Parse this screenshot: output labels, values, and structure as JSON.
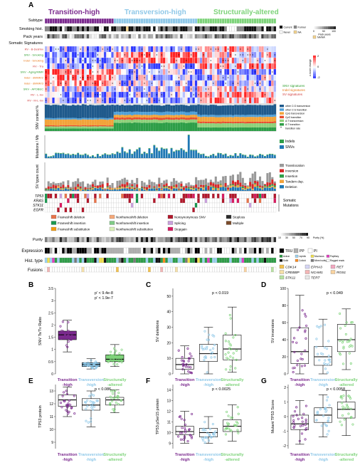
{
  "panel_letters": {
    "a": "A",
    "b": "B",
    "c": "C",
    "d": "D",
    "e": "E",
    "f": "F",
    "g": "G"
  },
  "subtypes": [
    {
      "name": "Transition-high",
      "color": "#7B2A8E",
      "count": 28
    },
    {
      "name": "Transversion-high",
      "color": "#8FC8E8",
      "count": 34
    },
    {
      "name": "Structurally-altered",
      "color": "#7ED37A",
      "count": 32
    }
  ],
  "rows": {
    "subtype": "Subtype",
    "smoking": "Smoking hist.",
    "packyears": "Pack years",
    "somatic": "Somatic Signatures",
    "snv_context": "SNV context %",
    "mutations": "Mutations / Mb",
    "svtypes": "SV types count",
    "purity": "Purity",
    "expression": "Expression",
    "histtype": "Hist. type",
    "fusions": "Fusions"
  },
  "smoking_legend": [
    "Current",
    "Former",
    "Never",
    "NA"
  ],
  "packyears_scale": {
    "min": "0",
    "mid": "50",
    "max": "100",
    "label": "Pack years",
    "na": "NA/NA"
  },
  "signature_rows": [
    {
      "label": "RV - B-Dell/Inv",
      "color": "#D13B3B"
    },
    {
      "label": "SNV - Smoking",
      "color": "#2E9E2E"
    },
    {
      "label": "Indel - Smoking",
      "color": "#E87A1C"
    },
    {
      "label": "RV - Tra",
      "color": "#D13B3B"
    },
    {
      "label": "SNV - Aging/MMR",
      "color": "#2E9E2E"
    },
    {
      "label": "Indel - dMMR/2",
      "color": "#E87A1C"
    },
    {
      "label": "Indel - dMMR/3",
      "color": "#E87A1C"
    },
    {
      "label": "SNV - APOBEC",
      "color": "#2E9E2E"
    },
    {
      "label": "RV - L-Inv",
      "color": "#D13B3B"
    },
    {
      "label": "RV - M-L-Inv",
      "color": "#D13B3B"
    }
  ],
  "zscore": {
    "label": "z-score change",
    "ticks": [
      "2",
      "0",
      "-2"
    ]
  },
  "signature_legend": [
    {
      "label": "SNV signatures",
      "color": "#2E9E2E"
    },
    {
      "label": "Indel signatures",
      "color": "#E87A1C"
    },
    {
      "label": "SV signatures",
      "color": "#D13B3B"
    }
  ],
  "snv_context_legend": [
    {
      "label": "other C:G transversion",
      "color": "#1F5A8C"
    },
    {
      "label": "other C:G transition",
      "color": "#4FA0D8"
    },
    {
      "label": "CpG transversion",
      "color": "#F2A33A"
    },
    {
      "label": "CpG transition",
      "color": "#E84E2E"
    },
    {
      "label": "A:T transversion",
      "color": "#8ED17A"
    },
    {
      "label": "A:T transition",
      "color": "#2E9E48"
    },
    {
      "label": "transition rate",
      "color": "#222222"
    }
  ],
  "mutation_legend": [
    {
      "label": "Indels",
      "color": "#2E9E48"
    },
    {
      "label": "SNVs",
      "color": "#1F78B4"
    }
  ],
  "sv_legend": [
    {
      "label": "Translocation",
      "color": "#999999"
    },
    {
      "label": "Inversion",
      "color": "#D62728"
    },
    {
      "label": "Insertion",
      "color": "#2E9E48"
    },
    {
      "label": "Tandem dup.",
      "color": "#F2A33A"
    },
    {
      "label": "Deletion",
      "color": "#1F78B4"
    }
  ],
  "genes": [
    "TP53",
    "KRAS",
    "STK11",
    "EGFR"
  ],
  "somatic_mutations_label": "Somatic Mutations",
  "mutation_types": [
    {
      "label": "Frameshift deletion",
      "color": "#E8734A"
    },
    {
      "label": "Nonframeshift deletion",
      "color": "#F5A97A"
    },
    {
      "label": "Nonsynonymous SNV",
      "color": "#B2182B"
    },
    {
      "label": "Stoploss",
      "color": "#2B2B2B"
    },
    {
      "label": "Frameshift insertion",
      "color": "#1A9850"
    },
    {
      "label": "Nonframeshift insertion",
      "color": "#7FCB86"
    },
    {
      "label": "Splicing",
      "color": "#C9A0DC"
    },
    {
      "label": "Multiple",
      "color": "#7A4A2A"
    },
    {
      "label": "Frameshift substitution",
      "color": "#F39C12"
    },
    {
      "label": "Nonframeshift substitution",
      "color": "#D9F0B8"
    },
    {
      "label": "Stopgain",
      "color": "#D81B60"
    }
  ],
  "purity_scale": {
    "ticks": [
      "10",
      "30",
      "50",
      "70",
      "90"
    ],
    "unit": "Purity (%)"
  },
  "expression_legend": [
    {
      "label": "TRU",
      "color": "#000000"
    },
    {
      "label": "PP",
      "color": "#B0B0B0"
    },
    {
      "label": "PI",
      "color": "#FFFFFF"
    }
  ],
  "hist_legend": [
    "Acinar",
    "Lepidic",
    "Mucinous",
    "Papillary",
    "Solid",
    "Colloid",
    "Mixed subtype",
    "Ragged reads"
  ],
  "fusion_genes": [
    {
      "label": "CDK14",
      "color": "#F2C14E"
    },
    {
      "label": "EPHA3",
      "color": "#D6D6F5"
    },
    {
      "label": "RET",
      "color": "#F2A8C0"
    },
    {
      "label": "CREBBP",
      "color": "#F5E0A8"
    },
    {
      "label": "NCAM1",
      "color": "#F4B6B6"
    },
    {
      "label": "ROS1",
      "color": "#F9D3A0"
    },
    {
      "label": "STK11",
      "color": "#B7E1A1"
    },
    {
      "label": "TERT",
      "color": "#E8E8E8"
    }
  ],
  "boxplots": [
    {
      "id": "B",
      "ylabel": "SNV Ts/Tv Ratio",
      "ylim": [
        0,
        3.5
      ],
      "ticks": [
        0,
        0.5,
        1.0,
        1.5,
        2.0,
        2.5,
        3.0,
        3.5
      ],
      "pvals": [
        "p' < 9.4e-8",
        "p' < 1.9e-7"
      ],
      "stats": [
        {
          "q1": 1.4,
          "med": 1.6,
          "q3": 1.75,
          "lo": 0.9,
          "hi": 2.2
        },
        {
          "q1": 0.3,
          "med": 0.38,
          "q3": 0.46,
          "lo": 0.2,
          "hi": 0.62
        },
        {
          "q1": 0.5,
          "med": 0.6,
          "q3": 0.78,
          "lo": 0.3,
          "hi": 1.2
        }
      ]
    },
    {
      "id": "C",
      "ylabel": "SV deletions",
      "ylim": [
        0,
        55
      ],
      "ticks": [
        0,
        10,
        20,
        30,
        40,
        50
      ],
      "pvals": [
        "p < 0.019"
      ],
      "stats": [
        {
          "q1": 3,
          "med": 6,
          "q3": 10,
          "lo": 0,
          "hi": 18
        },
        {
          "q1": 8,
          "med": 13,
          "q3": 19,
          "lo": 0,
          "hi": 30
        },
        {
          "q1": 9,
          "med": 16,
          "q3": 25,
          "lo": 1,
          "hi": 43
        }
      ]
    },
    {
      "id": "D",
      "ylabel": "SV inversions",
      "ylim": [
        0,
        100
      ],
      "ticks": [
        0,
        20,
        40,
        60,
        80,
        100
      ],
      "pvals": [
        "p < 0.049"
      ],
      "stats": [
        {
          "q1": 12,
          "med": 26,
          "q3": 54,
          "lo": 0,
          "hi": 92
        },
        {
          "q1": 10,
          "med": 20,
          "q3": 32,
          "lo": 0,
          "hi": 64
        },
        {
          "q1": 26,
          "med": 40,
          "q3": 58,
          "lo": 5,
          "hi": 76
        }
      ]
    },
    {
      "id": "E",
      "ylabel": "TP53 protein",
      "ylim": [
        8.5,
        13.5
      ],
      "ticks": [
        9,
        10,
        11,
        12,
        13
      ],
      "pvals": [
        "p < 0.086"
      ],
      "stats": [
        {
          "q1": 11.8,
          "med": 12.3,
          "q3": 12.7,
          "lo": 11.0,
          "hi": 13.3
        },
        {
          "q1": 11.5,
          "med": 11.9,
          "q3": 12.4,
          "lo": 10.2,
          "hi": 13.0
        },
        {
          "q1": 11.9,
          "med": 12.3,
          "q3": 12.5,
          "lo": 11.3,
          "hi": 13.1
        }
      ]
    },
    {
      "id": "F",
      "ylabel": "TP53 pSer15 protein",
      "ylim": [
        8.5,
        14.5
      ],
      "ticks": [
        9,
        10,
        11,
        12,
        13,
        14
      ],
      "pvals": [
        "p < 0.0025"
      ],
      "stats": [
        {
          "q1": 9.8,
          "med": 10.1,
          "q3": 10.6,
          "lo": 9.0,
          "hi": 12.0
        },
        {
          "q1": 9.6,
          "med": 10.0,
          "q3": 10.4,
          "lo": 9.0,
          "hi": 11.5
        },
        {
          "q1": 10.1,
          "med": 10.6,
          "q3": 11.2,
          "lo": 9.2,
          "hi": 12.6
        }
      ]
    },
    {
      "id": "G",
      "ylabel": "Mutant TP53 Score",
      "ylim": [
        -2.2,
        2.2
      ],
      "ticks": [
        -2,
        -1,
        0,
        1,
        2
      ],
      "pvals": [
        "p < 0.0058"
      ],
      "stats": [
        {
          "q1": -0.9,
          "med": -0.5,
          "q3": 0.1,
          "lo": -1.9,
          "hi": 1.1
        },
        {
          "q1": -0.4,
          "med": 0.1,
          "q3": 0.6,
          "lo": -1.4,
          "hi": 1.5
        },
        {
          "q1": -0.1,
          "med": 0.5,
          "q3": 1.0,
          "lo": -1.3,
          "hi": 1.8
        }
      ]
    }
  ],
  "group_labels": [
    {
      "line1": "Transition",
      "line2": "-high",
      "color": "#7B2A8E"
    },
    {
      "line1": "Transversion",
      "line2": "-high",
      "color": "#8FC8E8"
    },
    {
      "line1": "Structurally",
      "line2": "-altered",
      "color": "#7ED37A"
    }
  ],
  "chart_data": [
    {
      "type": "heatmap",
      "title": "",
      "series": [
        "Subtype",
        "Smoking hist.",
        "Pack years",
        "Somatic Signatures",
        "SNV context %",
        "Mutations / Mb",
        "SV types count",
        "Somatic Mutations",
        "Purity",
        "Expression",
        "Hist. type",
        "Fusions"
      ],
      "categories": [
        "Transition-high",
        "Transversion-high",
        "Structurally-altered"
      ]
    },
    {
      "type": "bar",
      "title": "",
      "ylabel": "SNV Ts/Tv Ratio",
      "categories": [
        "Transition-high",
        "Transversion-high",
        "Structurally-altered"
      ],
      "values": [
        1.6,
        0.38,
        0.6
      ],
      "ylim": [
        0,
        3.5
      ]
    },
    {
      "type": "bar",
      "title": "",
      "ylabel": "SV deletions",
      "categories": [
        "Transition-high",
        "Transversion-high",
        "Structurally-altered"
      ],
      "values": [
        6,
        13,
        16
      ],
      "ylim": [
        0,
        55
      ]
    },
    {
      "type": "bar",
      "title": "",
      "ylabel": "SV inversions",
      "categories": [
        "Transition-high",
        "Transversion-high",
        "Structurally-altered"
      ],
      "values": [
        26,
        20,
        40
      ],
      "ylim": [
        0,
        100
      ]
    },
    {
      "type": "bar",
      "title": "",
      "ylabel": "TP53 protein",
      "categories": [
        "Transition-high",
        "Transversion-high",
        "Structurally-altered"
      ],
      "values": [
        12.3,
        11.9,
        12.3
      ],
      "ylim": [
        8.5,
        13.5
      ]
    },
    {
      "type": "bar",
      "title": "",
      "ylabel": "TP53 pSer15 protein",
      "categories": [
        "Transition-high",
        "Transversion-high",
        "Structurally-altered"
      ],
      "values": [
        10.1,
        10.0,
        10.6
      ],
      "ylim": [
        8.5,
        14.5
      ]
    },
    {
      "type": "bar",
      "title": "",
      "ylabel": "Mutant TP53 Score",
      "categories": [
        "Transition-high",
        "Transversion-high",
        "Structurally-altered"
      ],
      "values": [
        -0.5,
        0.1,
        0.5
      ],
      "ylim": [
        -2.2,
        2.2
      ]
    }
  ]
}
